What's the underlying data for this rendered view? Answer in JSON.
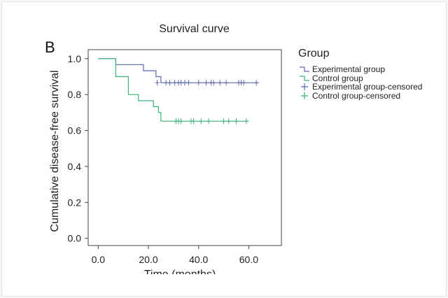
{
  "panel_label": "B",
  "chart_data": {
    "type": "line",
    "title": "Survival curve",
    "xlabel": "Time (months)",
    "ylabel": "Cumulative disease-free survival",
    "xlim": [
      -4,
      73
    ],
    "ylim": [
      -0.04,
      1.05
    ],
    "xticks": [
      0.0,
      20.0,
      40.0,
      60.0
    ],
    "xtick_labels": [
      "0.0",
      "20.0",
      "40.0",
      "60.0"
    ],
    "yticks": [
      0.0,
      0.2,
      0.4,
      0.6,
      0.8,
      1.0
    ],
    "ytick_labels": [
      "0.0",
      "0.2",
      "0.4",
      "0.6",
      "0.8",
      "1.0"
    ],
    "grid": false,
    "legend_title": "Group",
    "legend_position": "right",
    "series": [
      {
        "name": "Experimental group",
        "color": "#5a6ab4",
        "step_x": [
          0,
          7,
          7,
          18,
          18,
          23,
          23,
          25,
          25,
          64
        ],
        "step_y": [
          1.0,
          1.0,
          0.967,
          0.967,
          0.933,
          0.933,
          0.9,
          0.9,
          0.866,
          0.866
        ],
        "censored_name": "Experimental group-censored",
        "censored_x": [
          23.5,
          27,
          28.5,
          30.5,
          32,
          33,
          34.5,
          36,
          40,
          43,
          45,
          46,
          48.5,
          51,
          56,
          57,
          58,
          63
        ],
        "censored_y": 0.866
      },
      {
        "name": "Control group",
        "color": "#3cb478",
        "step_x": [
          0,
          7,
          7,
          12,
          12,
          16,
          16,
          22,
          22,
          24,
          24,
          25,
          25,
          60
        ],
        "step_y": [
          1.0,
          1.0,
          0.9,
          0.9,
          0.8,
          0.8,
          0.766,
          0.766,
          0.733,
          0.733,
          0.7,
          0.7,
          0.652,
          0.652
        ],
        "censored_name": "Control group-censored",
        "censored_x": [
          31,
          32,
          33,
          37,
          38,
          41,
          44,
          50,
          52,
          55,
          59
        ],
        "censored_y": 0.652
      }
    ]
  }
}
